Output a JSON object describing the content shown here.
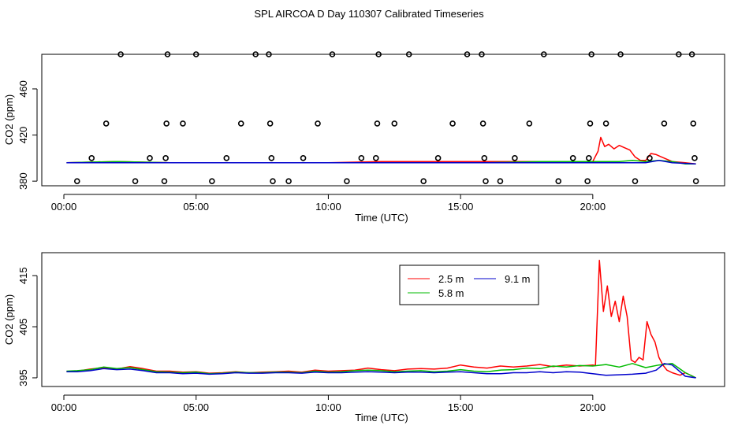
{
  "chart_data": [
    {
      "type": "scatter+line",
      "title": "SPL AIRCOA D  Day 110307  Calibrated Timeseries",
      "xlabel": "Time (UTC)",
      "ylabel": "CO2 (ppm)",
      "xlim": [
        0,
        24
      ],
      "ylim": [
        376,
        490
      ],
      "xticks": [
        0,
        5,
        10,
        15,
        20
      ],
      "xtick_labels": [
        "00:00",
        "05:00",
        "10:00",
        "15:00",
        "20:00"
      ],
      "yticks": [
        380,
        420,
        460
      ],
      "ytick_labels": [
        "380",
        "420",
        "460"
      ],
      "points": [
        {
          "x": 0.5,
          "y": 380
        },
        {
          "x": 1.05,
          "y": 400
        },
        {
          "x": 1.6,
          "y": 430
        },
        {
          "x": 2.15,
          "y": 490
        },
        {
          "x": 2.7,
          "y": 380
        },
        {
          "x": 3.25,
          "y": 400
        },
        {
          "x": 3.8,
          "y": 380
        },
        {
          "x": 3.85,
          "y": 400
        },
        {
          "x": 3.88,
          "y": 430
        },
        {
          "x": 3.92,
          "y": 490
        },
        {
          "x": 4.5,
          "y": 430
        },
        {
          "x": 5.0,
          "y": 490
        },
        {
          "x": 5.6,
          "y": 380
        },
        {
          "x": 6.15,
          "y": 400
        },
        {
          "x": 6.7,
          "y": 430
        },
        {
          "x": 7.25,
          "y": 490
        },
        {
          "x": 7.75,
          "y": 490
        },
        {
          "x": 7.8,
          "y": 430
        },
        {
          "x": 7.85,
          "y": 400
        },
        {
          "x": 7.9,
          "y": 380
        },
        {
          "x": 8.5,
          "y": 380
        },
        {
          "x": 9.05,
          "y": 400
        },
        {
          "x": 9.6,
          "y": 430
        },
        {
          "x": 10.15,
          "y": 490
        },
        {
          "x": 10.7,
          "y": 380
        },
        {
          "x": 11.25,
          "y": 400
        },
        {
          "x": 11.8,
          "y": 400
        },
        {
          "x": 11.85,
          "y": 430
        },
        {
          "x": 11.9,
          "y": 490
        },
        {
          "x": 12.5,
          "y": 430
        },
        {
          "x": 13.05,
          "y": 490
        },
        {
          "x": 13.6,
          "y": 380
        },
        {
          "x": 14.15,
          "y": 400
        },
        {
          "x": 14.7,
          "y": 430
        },
        {
          "x": 15.25,
          "y": 490
        },
        {
          "x": 15.8,
          "y": 490
        },
        {
          "x": 15.85,
          "y": 430
        },
        {
          "x": 15.9,
          "y": 400
        },
        {
          "x": 15.95,
          "y": 380
        },
        {
          "x": 16.5,
          "y": 380
        },
        {
          "x": 17.05,
          "y": 400
        },
        {
          "x": 17.6,
          "y": 430
        },
        {
          "x": 18.15,
          "y": 490
        },
        {
          "x": 18.7,
          "y": 380
        },
        {
          "x": 19.25,
          "y": 400
        },
        {
          "x": 19.8,
          "y": 380
        },
        {
          "x": 19.85,
          "y": 400
        },
        {
          "x": 19.9,
          "y": 430
        },
        {
          "x": 19.95,
          "y": 490
        },
        {
          "x": 20.5,
          "y": 430
        },
        {
          "x": 21.05,
          "y": 490
        },
        {
          "x": 21.6,
          "y": 380
        },
        {
          "x": 22.15,
          "y": 400
        },
        {
          "x": 22.7,
          "y": 430
        },
        {
          "x": 23.25,
          "y": 490
        },
        {
          "x": 23.75,
          "y": 490
        },
        {
          "x": 23.8,
          "y": 430
        },
        {
          "x": 23.85,
          "y": 400
        },
        {
          "x": 23.9,
          "y": 380
        }
      ],
      "series": [
        {
          "name": "2.5 m",
          "color": "#ff0000",
          "x": [
            0.1,
            2,
            4,
            6,
            8,
            10,
            12,
            14,
            15,
            16,
            17,
            18,
            19,
            20,
            20.2,
            20.3,
            20.45,
            20.6,
            20.8,
            21.0,
            21.2,
            21.4,
            21.6,
            21.8,
            22.0,
            22.2,
            22.4,
            22.6,
            23.0,
            23.5,
            23.9
          ],
          "y": [
            396,
            397,
            396,
            396,
            396,
            396,
            397,
            397,
            397,
            397,
            397,
            397,
            397,
            397,
            406,
            418,
            410,
            412,
            408,
            411,
            409,
            407,
            401,
            398,
            398,
            404,
            403,
            401,
            397,
            396,
            395
          ]
        },
        {
          "name": "5.8 m",
          "color": "#00bb00",
          "x": [
            0.1,
            2,
            4,
            6,
            8,
            10,
            12,
            14,
            16,
            18,
            20,
            20.5,
            21,
            21.5,
            22,
            22.5,
            23,
            23.5,
            23.9
          ],
          "y": [
            396,
            397,
            396,
            396,
            396,
            396,
            396,
            396,
            396,
            397,
            397,
            397,
            397,
            398,
            397,
            398,
            397,
            395,
            395
          ]
        },
        {
          "name": "9.1 m",
          "color": "#0000cc",
          "x": [
            0.1,
            2,
            4,
            6,
            8,
            10,
            12,
            14,
            16,
            18,
            20,
            21,
            21.5,
            22,
            22.5,
            23,
            23.9
          ],
          "y": [
            396,
            396,
            396,
            396,
            396,
            396,
            396,
            396,
            396,
            396,
            396,
            396,
            396,
            396,
            398,
            396,
            395
          ]
        }
      ]
    },
    {
      "type": "line",
      "xlabel": "Time (UTC)",
      "ylabel": "CO2 (ppm)",
      "xlim": [
        0,
        24
      ],
      "ylim": [
        393.3,
        419.5
      ],
      "xticks": [
        0,
        5,
        10,
        15,
        20
      ],
      "xtick_labels": [
        "00:00",
        "05:00",
        "10:00",
        "15:00",
        "20:00"
      ],
      "yticks": [
        395,
        405,
        415
      ],
      "ytick_labels": [
        "395",
        "405",
        "415"
      ],
      "legend": {
        "position": "top-center",
        "entries": [
          "2.5 m",
          "5.8 m",
          "9.1 m"
        ]
      },
      "series": [
        {
          "name": "2.5 m",
          "color": "#ff0000",
          "x": [
            0.1,
            0.5,
            1.0,
            1.5,
            2.0,
            2.5,
            3.0,
            3.5,
            4.0,
            4.5,
            5.0,
            5.5,
            6.0,
            6.5,
            7.0,
            7.5,
            8.0,
            8.5,
            9.0,
            9.5,
            10.0,
            10.5,
            11.0,
            11.5,
            12.0,
            12.5,
            13.0,
            13.5,
            14.0,
            14.5,
            15.0,
            15.5,
            16.0,
            16.5,
            17.0,
            17.5,
            18.0,
            18.5,
            19.0,
            19.5,
            20.0,
            20.1,
            20.25,
            20.4,
            20.55,
            20.7,
            20.85,
            21.0,
            21.15,
            21.3,
            21.45,
            21.6,
            21.75,
            21.9,
            22.05,
            22.2,
            22.35,
            22.5,
            22.65,
            22.8,
            23.0,
            23.3,
            23.5,
            23.9
          ],
          "y": [
            396.2,
            396.3,
            396.7,
            397.0,
            396.7,
            397.2,
            396.8,
            396.3,
            396.3,
            396.1,
            396.2,
            395.9,
            396.0,
            396.2,
            396.0,
            396.1,
            396.2,
            396.3,
            396.1,
            396.5,
            396.3,
            396.4,
            396.5,
            396.9,
            396.6,
            396.4,
            396.7,
            396.8,
            396.7,
            396.9,
            397.5,
            397.1,
            396.9,
            397.3,
            397.1,
            397.3,
            397.6,
            397.2,
            397.5,
            397.3,
            397.5,
            397.4,
            418.0,
            408.0,
            413.0,
            407.0,
            410.0,
            406.0,
            411.0,
            407.0,
            398.5,
            398.0,
            399.0,
            398.5,
            406.0,
            403.5,
            402.0,
            399.0,
            397.5,
            396.5,
            396.0,
            395.5,
            396.0,
            395.0
          ]
        },
        {
          "name": "5.8 m",
          "color": "#00bb00",
          "x": [
            0.1,
            0.5,
            1.0,
            1.5,
            2.0,
            2.5,
            3.0,
            3.5,
            4.0,
            4.5,
            5.0,
            5.5,
            6.0,
            6.5,
            7.0,
            7.5,
            8.0,
            8.5,
            9.0,
            9.5,
            10.0,
            10.5,
            11.0,
            11.5,
            12.0,
            12.5,
            13.0,
            13.5,
            14.0,
            14.5,
            15.0,
            15.5,
            16.0,
            16.5,
            17.0,
            17.5,
            18.0,
            18.5,
            19.0,
            19.5,
            20.0,
            20.5,
            21.0,
            21.5,
            22.0,
            22.5,
            23.0,
            23.5,
            23.9
          ],
          "y": [
            396.3,
            396.4,
            396.6,
            397.1,
            396.8,
            397.0,
            396.6,
            396.2,
            396.1,
            396.0,
            396.1,
            395.8,
            395.9,
            396.1,
            396.0,
            396.0,
            396.1,
            396.1,
            396.0,
            396.3,
            396.1,
            396.2,
            396.4,
            396.5,
            396.4,
            396.2,
            396.3,
            396.4,
            396.2,
            396.3,
            396.6,
            396.3,
            396.2,
            396.5,
            396.6,
            396.9,
            396.8,
            397.3,
            397.1,
            397.4,
            397.3,
            397.6,
            397.1,
            397.8,
            397.0,
            397.5,
            397.8,
            396.0,
            395.0
          ]
        },
        {
          "name": "9.1 m",
          "color": "#0000cc",
          "x": [
            0.1,
            0.5,
            1.0,
            1.5,
            2.0,
            2.5,
            3.0,
            3.5,
            4.0,
            4.5,
            5.0,
            5.5,
            6.0,
            6.5,
            7.0,
            7.5,
            8.0,
            8.5,
            9.0,
            9.5,
            10.0,
            10.5,
            11.0,
            11.5,
            12.0,
            12.5,
            13.0,
            13.5,
            14.0,
            14.5,
            15.0,
            15.5,
            16.0,
            16.5,
            17.0,
            17.5,
            18.0,
            18.5,
            19.0,
            19.5,
            20.0,
            20.5,
            21.0,
            21.5,
            22.0,
            22.4,
            22.7,
            23.0,
            23.5,
            23.9
          ],
          "y": [
            396.2,
            396.2,
            396.4,
            396.8,
            396.6,
            396.7,
            396.4,
            396.0,
            396.0,
            395.8,
            395.9,
            395.7,
            395.8,
            396.0,
            395.9,
            395.9,
            396.0,
            396.0,
            395.9,
            396.1,
            396.0,
            396.0,
            396.1,
            396.2,
            396.1,
            396.0,
            396.1,
            396.1,
            396.0,
            396.1,
            396.2,
            396.0,
            395.8,
            395.8,
            396.0,
            396.0,
            396.2,
            396.0,
            396.2,
            396.1,
            395.8,
            395.5,
            395.6,
            395.7,
            395.9,
            396.5,
            397.8,
            397.5,
            395.3,
            395.0
          ]
        }
      ]
    }
  ]
}
